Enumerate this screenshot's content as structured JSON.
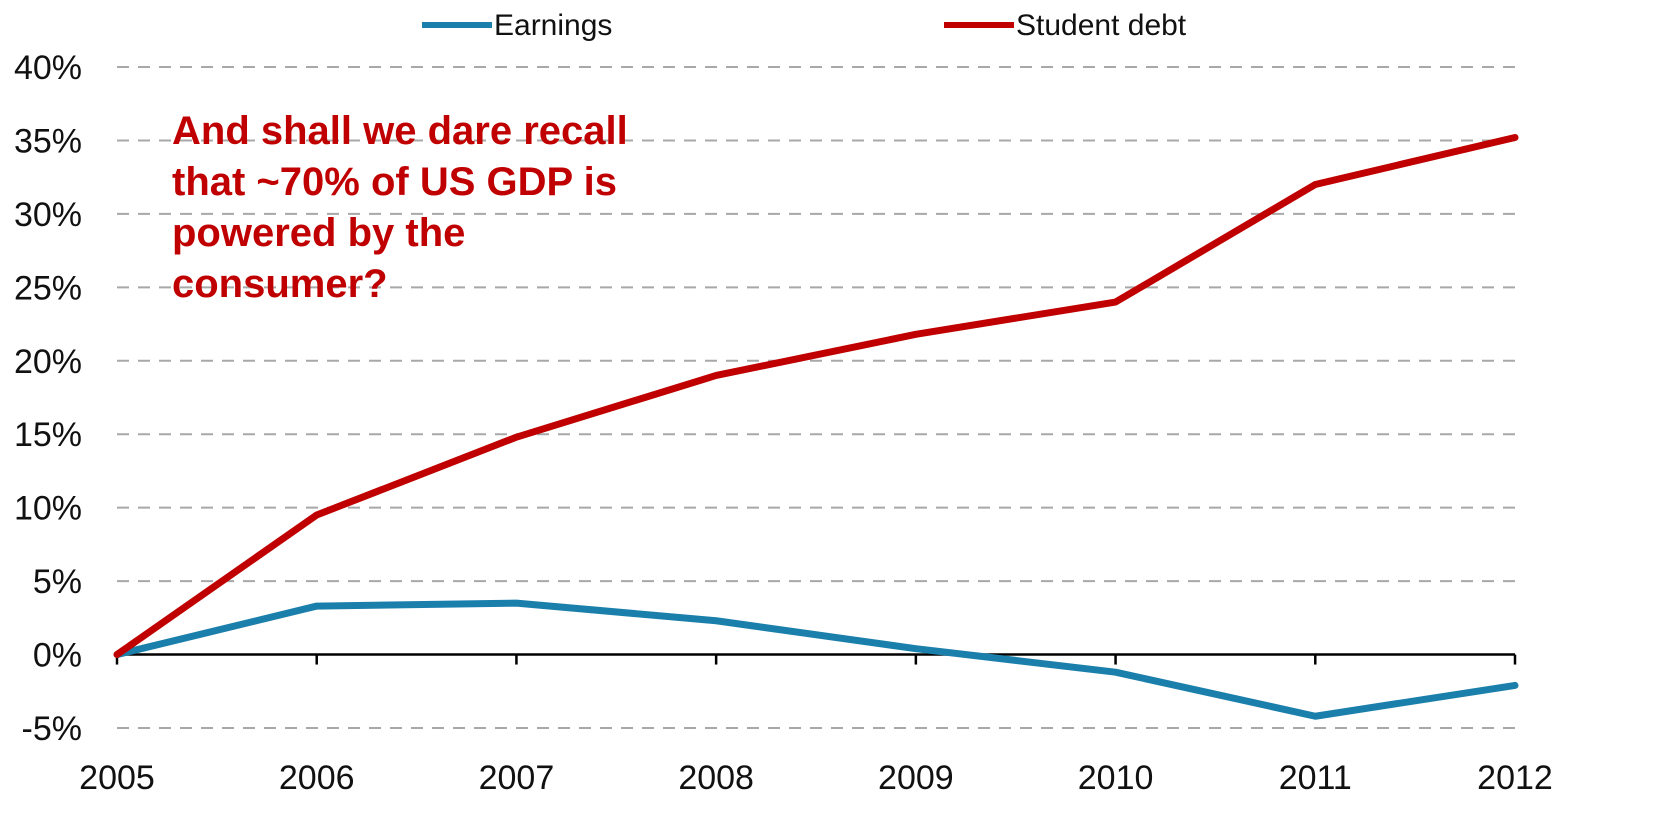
{
  "chart_data": {
    "type": "line",
    "x": [
      "2005",
      "2006",
      "2007",
      "2008",
      "2009",
      "2010",
      "2011",
      "2012"
    ],
    "series": [
      {
        "name": "Earnings",
        "color": "#1b7fab",
        "values": [
          0,
          3.3,
          3.5,
          2.3,
          0.4,
          -1.2,
          -4.2,
          -2.1
        ]
      },
      {
        "name": "Student debt",
        "color": "#c00000",
        "values": [
          0,
          9.5,
          14.8,
          19.0,
          21.8,
          24.0,
          32.0,
          35.2
        ]
      }
    ],
    "yticks": [
      "40%",
      "35%",
      "30%",
      "25%",
      "20%",
      "15%",
      "10%",
      "5%",
      "0%",
      "-5%"
    ],
    "ylim": [
      -5,
      40
    ],
    "grid": true,
    "legend_position": "top",
    "annotation": "And shall we dare recall\nthat ~70% of US GDP is\npowered by the\nconsumer?",
    "annotation_color": "#c00000"
  }
}
